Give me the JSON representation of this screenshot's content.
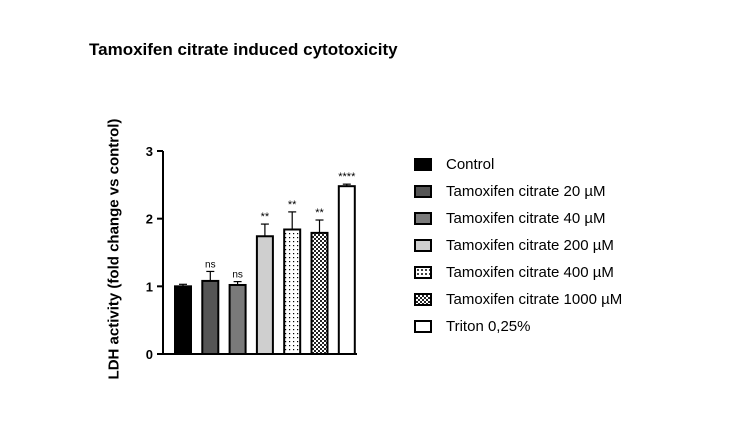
{
  "chart_data": {
    "type": "bar",
    "title": "Tamoxifen citrate induced cytotoxicity",
    "ylabel": "LDH activity (fold change vs control)",
    "xlabel": "",
    "ylim": [
      0,
      3
    ],
    "yticks": [
      "0",
      "1",
      "2",
      "3"
    ],
    "legend_position": "right",
    "grid": false,
    "series": [
      {
        "name": "Control",
        "value": 1.0,
        "error": 0.03,
        "significance": "",
        "fill": "black"
      },
      {
        "name": "Tamoxifen citrate 20 µM",
        "value": 1.08,
        "error": 0.14,
        "significance": "ns",
        "fill": "dark-gray"
      },
      {
        "name": "Tamoxifen citrate 40 µM",
        "value": 1.02,
        "error": 0.05,
        "significance": "ns",
        "fill": "gray"
      },
      {
        "name": "Tamoxifen citrate 200 µM",
        "value": 1.74,
        "error": 0.18,
        "significance": "**",
        "fill": "light-gray"
      },
      {
        "name": "Tamoxifen citrate 400 µM",
        "value": 1.84,
        "error": 0.26,
        "significance": "**",
        "fill": "dots"
      },
      {
        "name": "Tamoxifen citrate 1000 µM",
        "value": 1.79,
        "error": 0.19,
        "significance": "**",
        "fill": "checker"
      },
      {
        "name": "Triton 0,25%",
        "value": 2.48,
        "error": 0.03,
        "significance": "****",
        "fill": "white"
      }
    ]
  }
}
